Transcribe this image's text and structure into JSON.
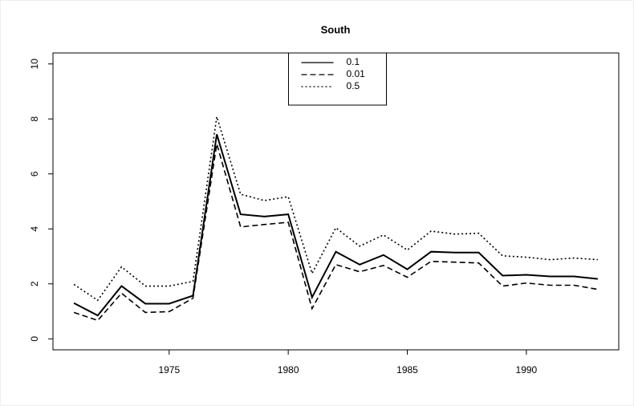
{
  "chart_data": {
    "type": "line",
    "title": "South",
    "x": [
      1971,
      1972,
      1973,
      1974,
      1975,
      1976,
      1977,
      1978,
      1979,
      1980,
      1981,
      1982,
      1983,
      1984,
      1985,
      1986,
      1987,
      1988,
      1989,
      1990,
      1991,
      1992,
      1993
    ],
    "series": [
      {
        "name": "0.1",
        "color": "#000000",
        "dash": "solid",
        "values": [
          1.3,
          0.85,
          1.92,
          1.28,
          1.28,
          1.57,
          7.44,
          4.53,
          4.45,
          4.53,
          1.51,
          3.17,
          2.7,
          3.05,
          2.53,
          3.17,
          3.14,
          3.14,
          2.3,
          2.33,
          2.27,
          2.27,
          2.18
        ]
      },
      {
        "name": "0.01",
        "color": "#000000",
        "dash": "dashed",
        "values": [
          0.96,
          0.67,
          1.66,
          0.96,
          0.99,
          1.48,
          7.09,
          4.07,
          4.16,
          4.24,
          1.1,
          2.7,
          2.44,
          2.67,
          2.24,
          2.82,
          2.79,
          2.76,
          1.92,
          2.03,
          1.95,
          1.95,
          1.8
        ]
      },
      {
        "name": "0.5",
        "color": "#000000",
        "dash": "dotted",
        "values": [
          1.98,
          1.4,
          2.62,
          1.92,
          1.92,
          2.09,
          8.08,
          5.26,
          5.03,
          5.17,
          2.38,
          4.04,
          3.37,
          3.78,
          3.23,
          3.92,
          3.81,
          3.84,
          3.02,
          2.97,
          2.88,
          2.94,
          2.88
        ]
      }
    ],
    "xlim": [
      1970.12,
      1993.88
    ],
    "xticks": [
      1975,
      1980,
      1985,
      1990
    ],
    "ylim": [
      -0.4,
      10.4
    ],
    "yticks": [
      0,
      2,
      4,
      6,
      8,
      10
    ],
    "legend": "top"
  }
}
